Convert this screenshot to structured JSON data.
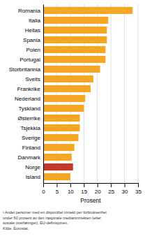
{
  "chart_data": {
    "type": "bar",
    "orientation": "horizontal",
    "categories": [
      "Romania",
      "Italia",
      "Hellas",
      "Spania",
      "Polen",
      "Portugal",
      "Storbritannia",
      "Sveits",
      "Frankrike",
      "Nederland",
      "Tyskland",
      "Østerrike",
      "Tsjekkia",
      "Sverige",
      "Finland",
      "Danmark",
      "Norge",
      "Island"
    ],
    "values": [
      33,
      24,
      23.5,
      23.5,
      23,
      23,
      21,
      18.5,
      17.5,
      15.5,
      15,
      13.5,
      13.5,
      13,
      11.5,
      10.5,
      11,
      10
    ],
    "colors": [
      "#F5A623",
      "#F5A623",
      "#F5A623",
      "#F5A623",
      "#F5A623",
      "#F5A623",
      "#F5A623",
      "#F5A623",
      "#F5A623",
      "#F5A623",
      "#F5A623",
      "#F5A623",
      "#F5A623",
      "#F5A623",
      "#F5A623",
      "#F5A623",
      "#C0392B",
      "#F5A623"
    ],
    "x_label": "Prosent",
    "xlim": [
      0,
      35
    ],
    "xticks": [
      0,
      5,
      10,
      15,
      20,
      25,
      30,
      35
    ],
    "grid": true,
    "annotations": [
      "¹ Andel personer med en disponibel inntekt per forbruksenhet",
      "under 60 prosent av den nasjonale medianinntekten (etter",
      "sosiale overføringer). EU-definisjonen.",
      "Kilde: Eurostat."
    ]
  }
}
